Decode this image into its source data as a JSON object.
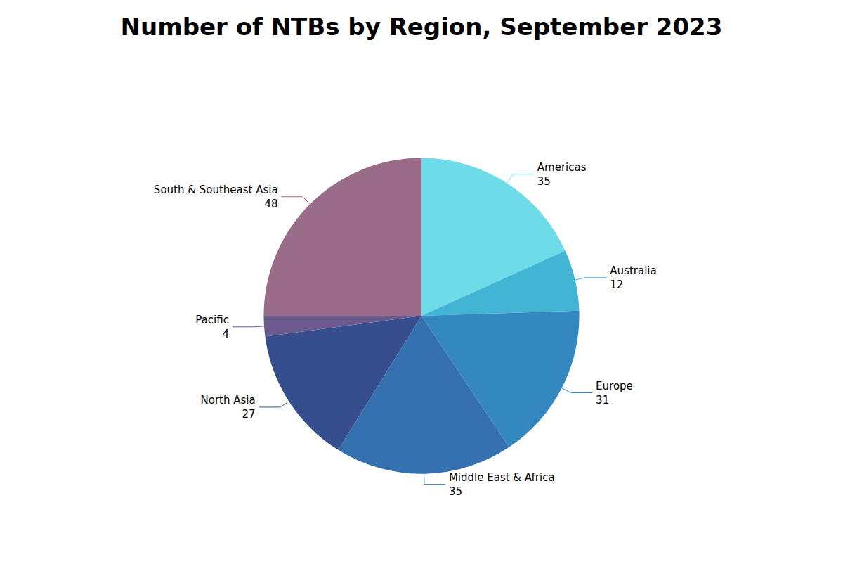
{
  "chart_data": {
    "type": "pie",
    "title": "Number of NTBs by Region, September 2023",
    "categories": [
      "Americas",
      "Australia",
      "Europe",
      "Middle East & Africa",
      "North Asia",
      "Pacific",
      "South & Southeast Asia"
    ],
    "values": [
      35,
      12,
      31,
      35,
      27,
      4,
      48
    ],
    "colors": [
      "#6DDCE8",
      "#42B4D4",
      "#3488C0",
      "#3570B0",
      "#374E8E",
      "#6B5B8C",
      "#9B6B8A"
    ],
    "data_labels": true,
    "legend": false
  }
}
